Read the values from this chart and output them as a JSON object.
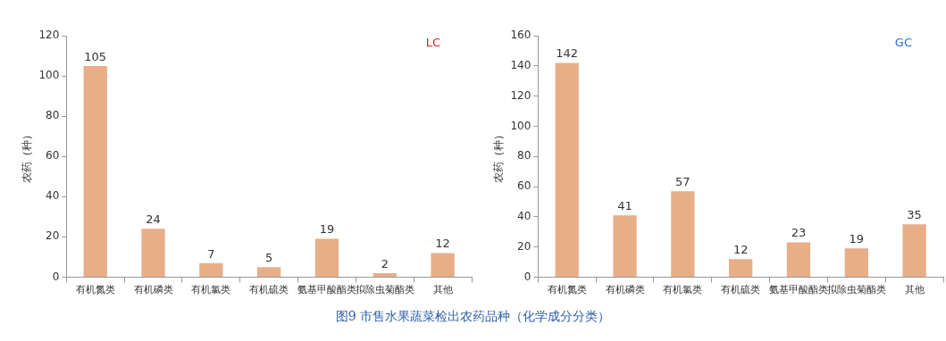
{
  "chart_data": [
    {
      "type": "bar",
      "ylabel": "农药（种）",
      "categories": [
        "有机氮类",
        "有机磷类",
        "有机氯类",
        "有机硫类",
        "氨基甲酸酯类",
        "拟除虫菊酯类",
        "其他"
      ],
      "values": [
        105,
        24,
        7,
        5,
        19,
        2,
        12
      ],
      "color": "#e8ae88",
      "ylim": [
        0,
        120
      ],
      "yticks": [
        0,
        20,
        40,
        60,
        80,
        100,
        120
      ],
      "grid": false,
      "data_labels": true,
      "annotations": [
        "LC",
        "图9  市售水果蔬菜检出农药品种（化学成分分类）"
      ]
    },
    {
      "type": "bar",
      "ylabel": "农药（种）",
      "categories": [
        "有机氮类",
        "有机磷类",
        "有机氯类",
        "有机硫类",
        "氨基甲酸酯类",
        "拟除虫菊酯类",
        "其他"
      ],
      "values": [
        142,
        41,
        57,
        12,
        23,
        19,
        35
      ],
      "color": "#e8ae88",
      "ylim": [
        0,
        160
      ],
      "yticks": [
        0,
        20,
        40,
        60,
        80,
        100,
        120,
        140,
        160
      ],
      "grid": false,
      "data_labels": true,
      "annotations": [
        "GC"
      ]
    }
  ]
}
